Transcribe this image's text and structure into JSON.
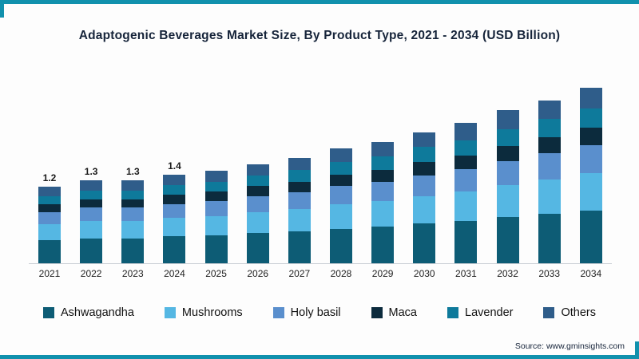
{
  "frame": {
    "accent_color": "#1191ad"
  },
  "title": "Adaptogenic Beverages Market Size, By Product Type, 2021 - 2034 (USD Billion)",
  "source": "Source: www.gminsights.com",
  "chart_data": {
    "type": "bar",
    "stacked": true,
    "title": "Adaptogenic Beverages Market Size, By Product Type, 2021 - 2034 (USD Billion)",
    "xlabel": "",
    "ylabel": "USD Billion",
    "ylim": [
      0,
      3
    ],
    "grid": false,
    "legend_position": "bottom",
    "categories": [
      "2021",
      "2022",
      "2023",
      "2024",
      "2025",
      "2026",
      "2027",
      "2028",
      "2029",
      "2030",
      "2031",
      "2032",
      "2033",
      "2034"
    ],
    "bar_labels": [
      "1.2",
      "1.3",
      "1.3",
      "1.4",
      "",
      "",
      "",
      "",
      "",
      "",
      "",
      "",
      "",
      ""
    ],
    "totals": [
      1.2,
      1.3,
      1.3,
      1.4,
      1.45,
      1.55,
      1.65,
      1.8,
      1.9,
      2.05,
      2.2,
      2.4,
      2.55,
      2.75
    ],
    "series": [
      {
        "name": "Ashwagandha",
        "color": "#0d5c75",
        "values": [
          0.36,
          0.39,
          0.39,
          0.42,
          0.44,
          0.47,
          0.5,
          0.54,
          0.57,
          0.62,
          0.66,
          0.72,
          0.77,
          0.83
        ]
      },
      {
        "name": "Mushrooms",
        "color": "#55b7e3",
        "values": [
          0.25,
          0.27,
          0.27,
          0.29,
          0.3,
          0.33,
          0.35,
          0.38,
          0.4,
          0.43,
          0.46,
          0.5,
          0.54,
          0.58
        ]
      },
      {
        "name": "Holy basil",
        "color": "#5a8fcd",
        "values": [
          0.19,
          0.21,
          0.21,
          0.22,
          0.23,
          0.25,
          0.26,
          0.29,
          0.3,
          0.33,
          0.35,
          0.38,
          0.41,
          0.44
        ]
      },
      {
        "name": "Maca",
        "color": "#0c2b3d",
        "values": [
          0.12,
          0.13,
          0.13,
          0.14,
          0.15,
          0.16,
          0.17,
          0.18,
          0.19,
          0.21,
          0.22,
          0.24,
          0.26,
          0.28
        ]
      },
      {
        "name": "Lavender",
        "color": "#0e7a9b",
        "values": [
          0.13,
          0.14,
          0.14,
          0.15,
          0.16,
          0.17,
          0.18,
          0.2,
          0.21,
          0.23,
          0.24,
          0.26,
          0.28,
          0.3
        ]
      },
      {
        "name": "Others",
        "color": "#2f5d8a",
        "values": [
          0.15,
          0.16,
          0.16,
          0.17,
          0.17,
          0.17,
          0.19,
          0.21,
          0.23,
          0.23,
          0.27,
          0.3,
          0.29,
          0.32
        ]
      }
    ]
  }
}
